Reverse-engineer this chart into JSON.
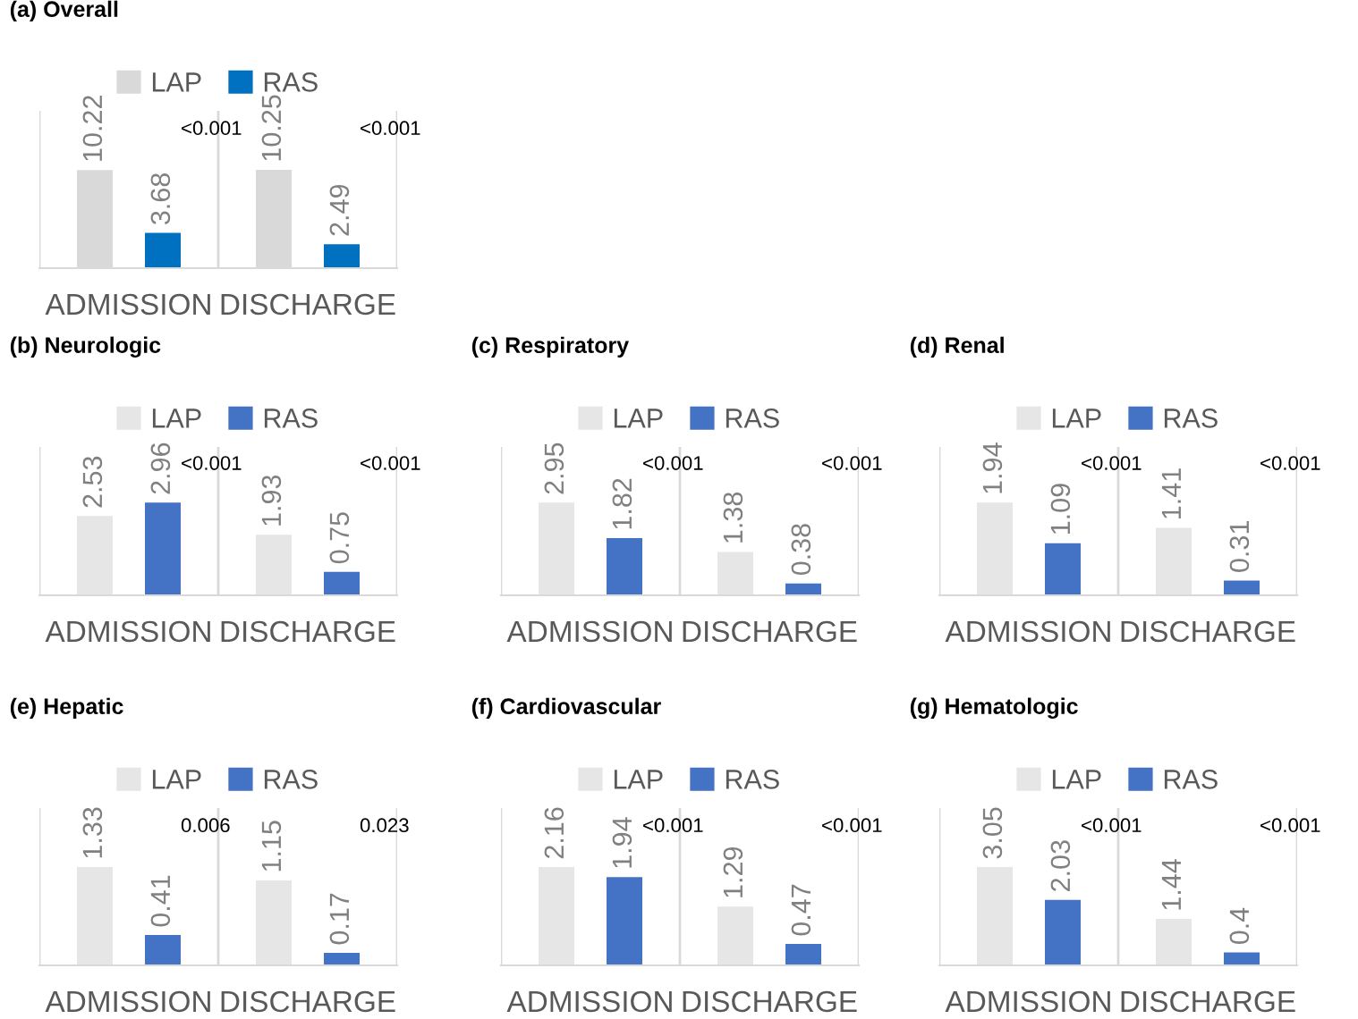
{
  "chart_data": [
    {
      "type": "bar",
      "title": "(a) Overall",
      "categories": [
        "ADMISSION",
        "DISCHARGE"
      ],
      "series": [
        {
          "name": "LAP",
          "color": "#d9d9d9",
          "values": [
            10.22,
            10.25
          ]
        },
        {
          "name": "RAS",
          "color": "#0070c0",
          "values": [
            3.68,
            2.49
          ]
        }
      ],
      "data_labels": true,
      "legend": "top",
      "grid": "x",
      "annotations": [
        "<0.001",
        "<0.001"
      ]
    },
    {
      "type": "bar",
      "title": "(b) Neurologic",
      "categories": [
        "ADMISSION",
        "DISCHARGE"
      ],
      "series": [
        {
          "name": "LAP",
          "color": "#e7e6e6",
          "values": [
            2.53,
            1.93
          ]
        },
        {
          "name": "RAS",
          "color": "#4472c4",
          "values": [
            2.96,
            0.75
          ]
        }
      ],
      "data_labels": true,
      "legend": "top",
      "grid": "x",
      "annotations": [
        "<0.001",
        "<0.001"
      ]
    },
    {
      "type": "bar",
      "title": "(c) Respiratory",
      "categories": [
        "ADMISSION",
        "DISCHARGE"
      ],
      "series": [
        {
          "name": "LAP",
          "color": "#e7e6e6",
          "values": [
            2.95,
            1.38
          ]
        },
        {
          "name": "RAS",
          "color": "#4472c4",
          "values": [
            1.82,
            0.38
          ]
        }
      ],
      "data_labels": true,
      "legend": "top",
      "grid": "x",
      "annotations": [
        "<0.001",
        "<0.001"
      ]
    },
    {
      "type": "bar",
      "title": "(d) Renal",
      "categories": [
        "ADMISSION",
        "DISCHARGE"
      ],
      "series": [
        {
          "name": "LAP",
          "color": "#e7e6e6",
          "values": [
            1.94,
            1.41
          ]
        },
        {
          "name": "RAS",
          "color": "#4472c4",
          "values": [
            1.09,
            0.31
          ]
        }
      ],
      "data_labels": true,
      "legend": "top",
      "grid": "x",
      "annotations": [
        "<0.001",
        "<0.001"
      ]
    },
    {
      "type": "bar",
      "title": "(e) Hepatic",
      "categories": [
        "ADMISSION",
        "DISCHARGE"
      ],
      "series": [
        {
          "name": "LAP",
          "color": "#e7e6e6",
          "values": [
            1.33,
            1.15
          ]
        },
        {
          "name": "RAS",
          "color": "#4472c4",
          "values": [
            0.41,
            0.17
          ]
        }
      ],
      "data_labels": true,
      "legend": "top",
      "grid": "x",
      "annotations": [
        "0.006",
        "0.023"
      ]
    },
    {
      "type": "bar",
      "title": "(f) Cardiovascular",
      "categories": [
        "ADMISSION",
        "DISCHARGE"
      ],
      "series": [
        {
          "name": "LAP",
          "color": "#e7e6e6",
          "values": [
            2.16,
            1.29
          ]
        },
        {
          "name": "RAS",
          "color": "#4472c4",
          "values": [
            1.94,
            0.47
          ]
        }
      ],
      "data_labels": true,
      "legend": "top",
      "grid": "x",
      "annotations": [
        "<0.001",
        "<0.001"
      ]
    },
    {
      "type": "bar",
      "title": "(g) Hematologic",
      "categories": [
        "ADMISSION",
        "DISCHARGE"
      ],
      "series": [
        {
          "name": "LAP",
          "color": "#e7e6e6",
          "values": [
            3.05,
            1.44
          ]
        },
        {
          "name": "RAS",
          "color": "#4472c4",
          "values": [
            2.03,
            0.4
          ]
        }
      ],
      "data_labels": true,
      "legend": "top",
      "grid": "x",
      "annotations": [
        "<0.001",
        "<0.001"
      ]
    }
  ]
}
